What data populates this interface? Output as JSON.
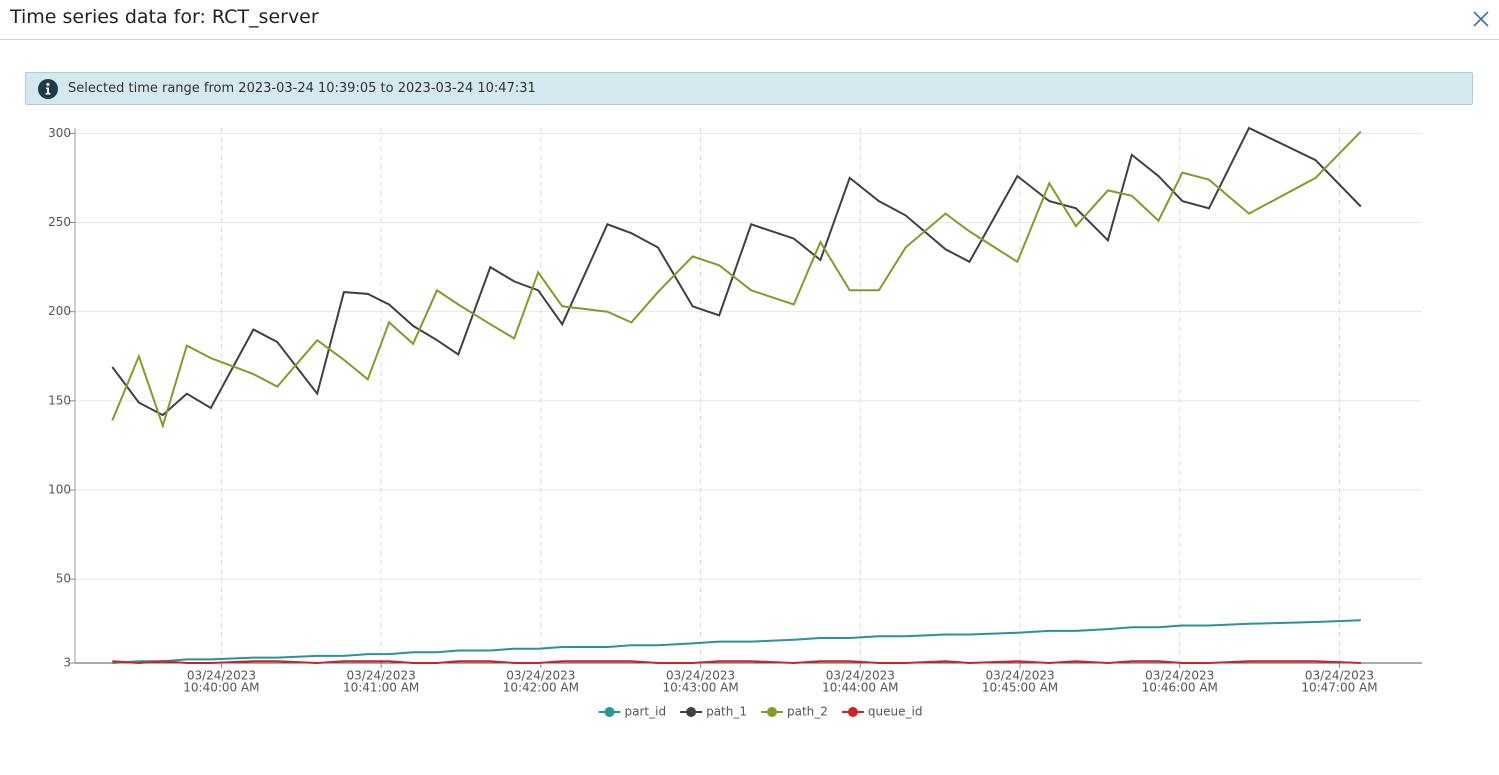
{
  "header": {
    "title": "Time series data for: RCT_server"
  },
  "banner": {
    "text": "Selected time range from 2023-03-24 10:39:05 to 2023-03-24 10:47:31"
  },
  "chart_data": {
    "type": "line",
    "x": [
      "2023-03-24T10:39:19",
      "2023-03-24T10:39:29",
      "2023-03-24T10:39:38",
      "2023-03-24T10:39:47",
      "2023-03-24T10:39:56",
      "2023-03-24T10:40:12",
      "2023-03-24T10:40:21",
      "2023-03-24T10:40:36",
      "2023-03-24T10:40:46",
      "2023-03-24T10:40:55",
      "2023-03-24T10:41:03",
      "2023-03-24T10:41:12",
      "2023-03-24T10:41:21",
      "2023-03-24T10:41:29",
      "2023-03-24T10:41:41",
      "2023-03-24T10:41:50",
      "2023-03-24T10:41:59",
      "2023-03-24T10:42:08",
      "2023-03-24T10:42:25",
      "2023-03-24T10:42:34",
      "2023-03-24T10:42:44",
      "2023-03-24T10:42:57",
      "2023-03-24T10:43:07",
      "2023-03-24T10:43:19",
      "2023-03-24T10:43:35",
      "2023-03-24T10:43:45",
      "2023-03-24T10:43:56",
      "2023-03-24T10:44:07",
      "2023-03-24T10:44:17",
      "2023-03-24T10:44:32",
      "2023-03-24T10:44:41",
      "2023-03-24T10:44:59",
      "2023-03-24T10:45:11",
      "2023-03-24T10:45:21",
      "2023-03-24T10:45:33",
      "2023-03-24T10:45:42",
      "2023-03-24T10:45:52",
      "2023-03-24T10:46:01",
      "2023-03-24T10:46:11",
      "2023-03-24T10:46:26",
      "2023-03-24T10:46:51",
      "2023-03-24T10:47:08"
    ],
    "series": [
      {
        "name": "part_id",
        "color": "#2a9394",
        "values": [
          3,
          4,
          4,
          5,
          5,
          6,
          6,
          7,
          7,
          8,
          8,
          9,
          9,
          10,
          10,
          11,
          11,
          12,
          12,
          13,
          13,
          14,
          15,
          15,
          16,
          17,
          17,
          18,
          18,
          19,
          19,
          20,
          21,
          21,
          22,
          23,
          23,
          24,
          24,
          25,
          26,
          27
        ]
      },
      {
        "name": "path_1",
        "color": "#3b4147",
        "values": [
          169,
          149,
          142,
          154,
          146,
          190,
          183,
          154,
          211,
          210,
          204,
          192,
          184,
          176,
          225,
          217,
          212,
          193,
          249,
          244,
          236,
          203,
          198,
          249,
          241,
          229,
          275,
          262,
          254,
          235,
          228,
          276,
          262,
          258,
          240,
          288,
          276,
          262,
          258,
          303,
          285,
          259
        ]
      },
      {
        "name": "path_2",
        "color": "#86992a",
        "values": [
          139,
          175,
          136,
          181,
          174,
          165,
          158,
          184,
          173,
          162,
          194,
          182,
          212,
          204,
          193,
          185,
          222,
          203,
          200,
          194,
          211,
          231,
          226,
          212,
          204,
          239,
          212,
          212,
          236,
          255,
          245,
          228,
          272,
          248,
          268,
          265,
          251,
          278,
          274,
          255,
          275,
          301
        ]
      },
      {
        "name": "queue_id",
        "color": "#cc2229",
        "values": [
          4,
          3,
          4,
          3,
          3,
          4,
          4,
          3,
          4,
          4,
          4,
          3,
          3,
          4,
          4,
          3,
          3,
          4,
          4,
          4,
          3,
          3,
          4,
          4,
          3,
          4,
          4,
          3,
          3,
          4,
          3,
          4,
          3,
          4,
          3,
          4,
          4,
          3,
          3,
          4,
          4,
          3
        ]
      }
    ],
    "xlim": [
      "2023-03-24T10:39:05",
      "2023-03-24T10:47:31"
    ],
    "xticks": [
      {
        "value": "2023-03-24T10:40:00",
        "label": [
          "03/24/2023",
          "10:40:00 AM"
        ]
      },
      {
        "value": "2023-03-24T10:41:00",
        "label": [
          "03/24/2023",
          "10:41:00 AM"
        ]
      },
      {
        "value": "2023-03-24T10:42:00",
        "label": [
          "03/24/2023",
          "10:42:00 AM"
        ]
      },
      {
        "value": "2023-03-24T10:43:00",
        "label": [
          "03/24/2023",
          "10:43:00 AM"
        ]
      },
      {
        "value": "2023-03-24T10:44:00",
        "label": [
          "03/24/2023",
          "10:44:00 AM"
        ]
      },
      {
        "value": "2023-03-24T10:45:00",
        "label": [
          "03/24/2023",
          "10:45:00 AM"
        ]
      },
      {
        "value": "2023-03-24T10:46:00",
        "label": [
          "03/24/2023",
          "10:46:00 AM"
        ]
      },
      {
        "value": "2023-03-24T10:47:00",
        "label": [
          "03/24/2023",
          "10:47:00 AM"
        ]
      }
    ],
    "ylim": [
      3,
      303
    ],
    "yticks": [
      3,
      50,
      100,
      150,
      200,
      250,
      300
    ],
    "grid": true,
    "legend": "bottom"
  }
}
